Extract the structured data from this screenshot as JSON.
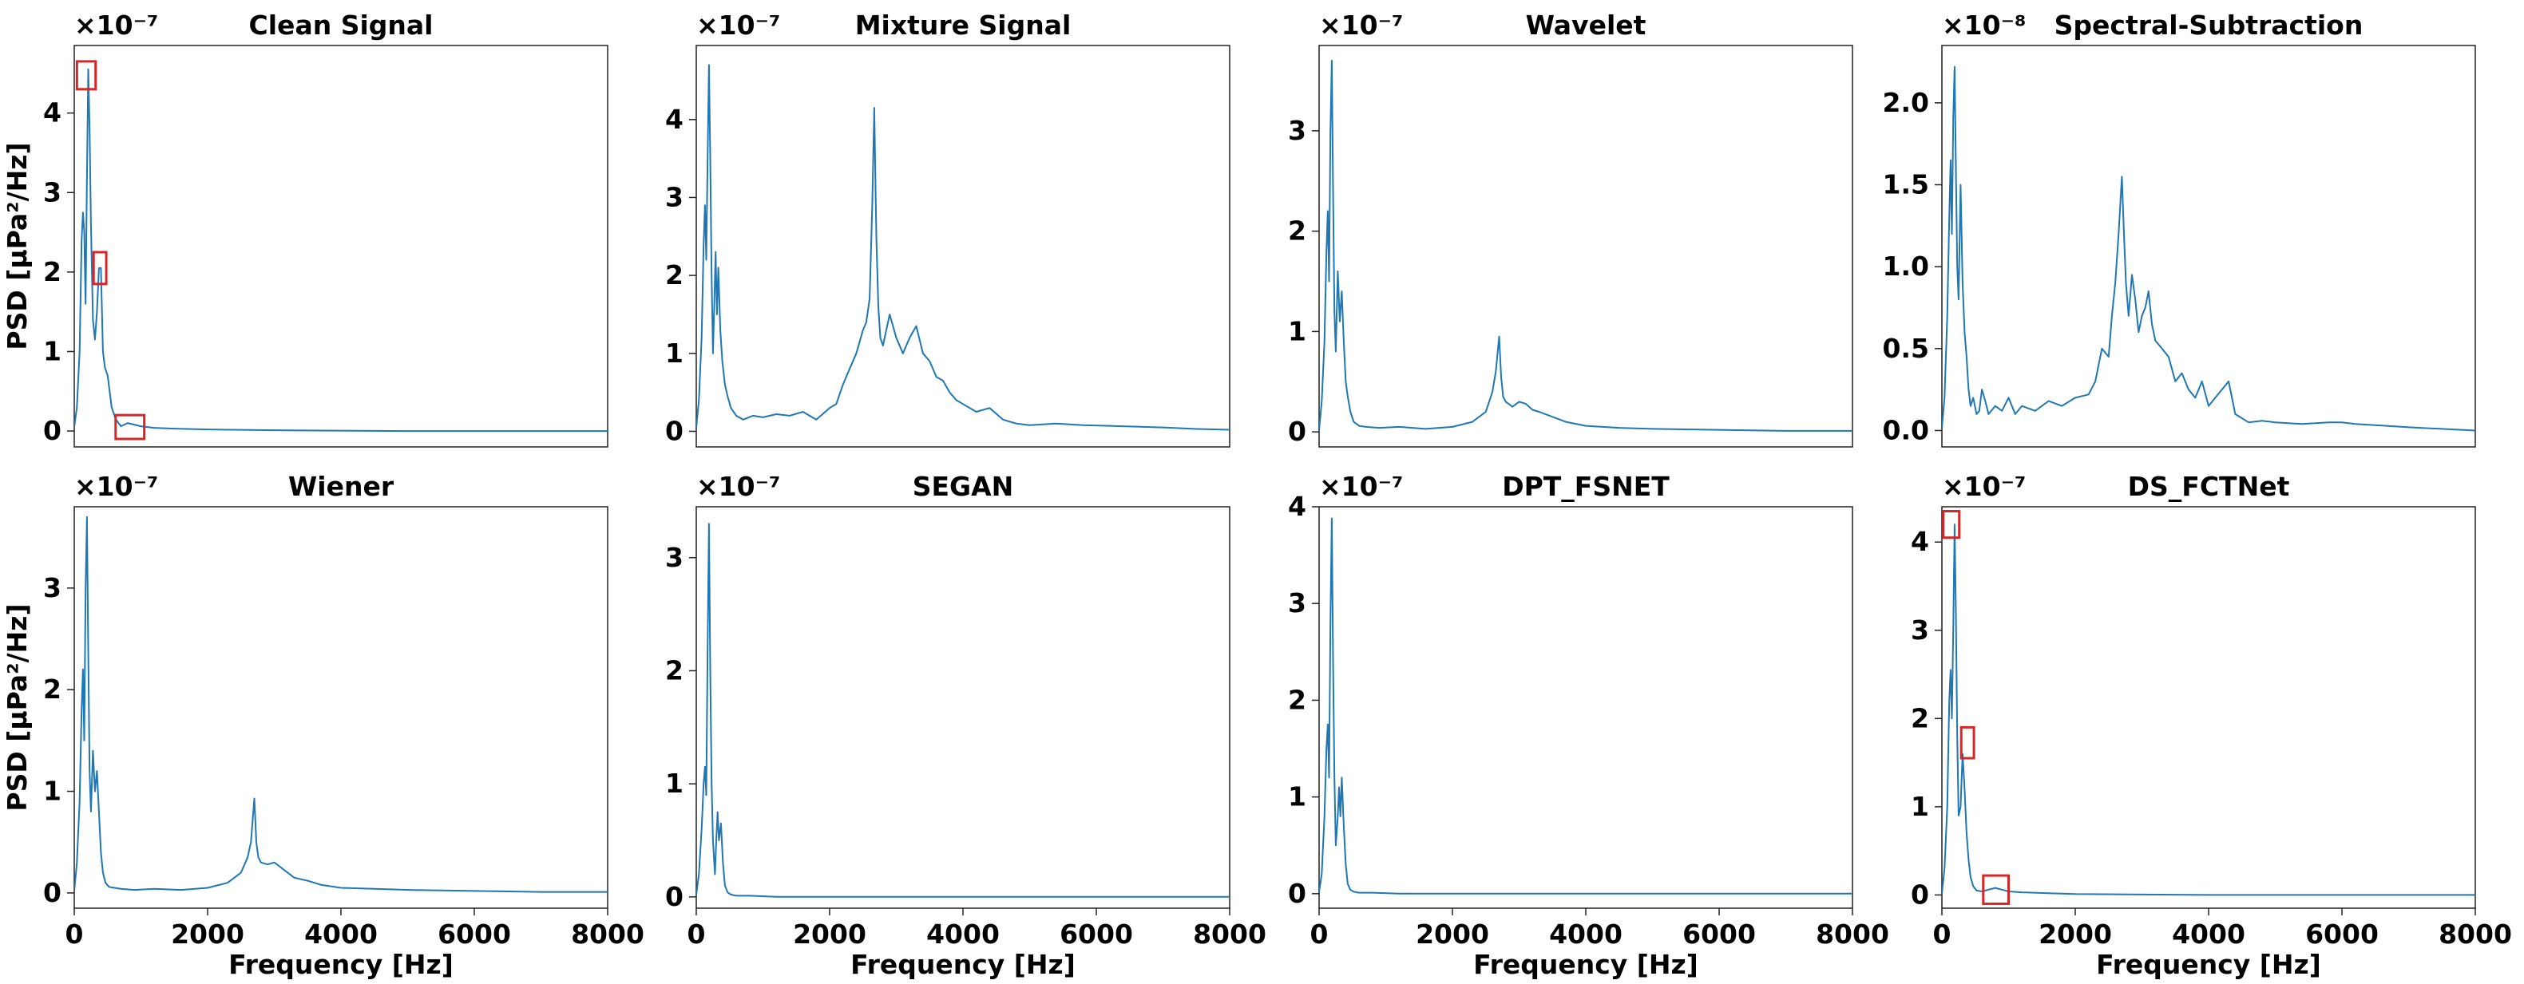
{
  "chart_data": [
    {
      "type": "line",
      "title": "Clean Signal",
      "multiplier": "×10⁻⁷",
      "ylabel": "PSD [μPa²/Hz]",
      "xlabel": "",
      "xlim": [
        0,
        8000
      ],
      "ylim": [
        -0.2,
        4.85
      ],
      "xticks": [],
      "yticks": [
        0,
        1,
        2,
        3,
        4
      ],
      "x": [
        0,
        40,
        80,
        110,
        130,
        150,
        170,
        190,
        210,
        230,
        250,
        280,
        310,
        340,
        370,
        400,
        430,
        460,
        500,
        560,
        620,
        700,
        800,
        900,
        1000,
        1200,
        1500,
        2000,
        3000,
        5000,
        8000
      ],
      "y": [
        0.05,
        0.3,
        1.0,
        2.4,
        2.75,
        2.5,
        1.6,
        3.2,
        4.55,
        3.8,
        2.6,
        1.4,
        1.15,
        1.5,
        2.05,
        2.05,
        1.0,
        0.8,
        0.7,
        0.3,
        0.15,
        0.06,
        0.1,
        0.08,
        0.06,
        0.04,
        0.03,
        0.02,
        0.01,
        0.0,
        0.0
      ],
      "highlights": [
        {
          "x": [
            40,
            320
          ],
          "y": [
            4.3,
            4.65
          ]
        },
        {
          "x": [
            290,
            480
          ],
          "y": [
            1.85,
            2.25
          ]
        },
        {
          "x": [
            620,
            1050
          ],
          "y": [
            -0.1,
            0.2
          ]
        }
      ]
    },
    {
      "type": "line",
      "title": "Mixture Signal",
      "multiplier": "×10⁻⁷",
      "ylabel": "",
      "xlabel": "",
      "xlim": [
        0,
        8000
      ],
      "ylim": [
        -0.2,
        4.95
      ],
      "xticks": [],
      "yticks": [
        0,
        1,
        2,
        3,
        4
      ],
      "x": [
        0,
        40,
        80,
        110,
        130,
        150,
        170,
        190,
        210,
        230,
        250,
        270,
        290,
        310,
        330,
        360,
        390,
        430,
        470,
        520,
        600,
        700,
        850,
        1000,
        1200,
        1400,
        1600,
        1800,
        2000,
        2100,
        2200,
        2300,
        2400,
        2500,
        2550,
        2600,
        2640,
        2670,
        2700,
        2730,
        2760,
        2800,
        2900,
        3000,
        3100,
        3200,
        3300,
        3400,
        3500,
        3600,
        3700,
        3800,
        3900,
        4000,
        4200,
        4400,
        4600,
        4800,
        5000,
        5400,
        5800,
        6200,
        6600,
        7000,
        7500,
        8000
      ],
      "y": [
        0.05,
        0.4,
        1.2,
        2.4,
        2.9,
        2.2,
        3.5,
        4.7,
        3.5,
        2.0,
        1.0,
        1.6,
        2.3,
        1.5,
        2.1,
        1.3,
        0.9,
        0.6,
        0.45,
        0.3,
        0.2,
        0.15,
        0.2,
        0.18,
        0.22,
        0.2,
        0.25,
        0.15,
        0.3,
        0.35,
        0.6,
        0.8,
        1.0,
        1.3,
        1.4,
        1.7,
        2.9,
        4.15,
        2.5,
        1.6,
        1.2,
        1.1,
        1.5,
        1.2,
        1.0,
        1.2,
        1.35,
        1.0,
        0.9,
        0.7,
        0.65,
        0.5,
        0.4,
        0.35,
        0.25,
        0.3,
        0.15,
        0.1,
        0.08,
        0.1,
        0.08,
        0.07,
        0.06,
        0.05,
        0.03,
        0.02
      ]
    },
    {
      "type": "line",
      "title": "Wavelet",
      "multiplier": "×10⁻⁷",
      "ylabel": "",
      "xlabel": "",
      "xlim": [
        0,
        8000
      ],
      "ylim": [
        -0.15,
        3.85
      ],
      "xticks": [],
      "yticks": [
        0,
        1,
        2,
        3
      ],
      "x": [
        0,
        40,
        80,
        110,
        130,
        150,
        170,
        190,
        210,
        230,
        250,
        280,
        310,
        340,
        370,
        400,
        430,
        470,
        520,
        600,
        700,
        900,
        1200,
        1600,
        2000,
        2300,
        2500,
        2600,
        2650,
        2700,
        2730,
        2760,
        2800,
        2900,
        3000,
        3100,
        3200,
        3300,
        3500,
        3700,
        4000,
        4500,
        5000,
        6000,
        7000,
        8000
      ],
      "y": [
        0.02,
        0.3,
        0.9,
        1.8,
        2.2,
        1.5,
        3.0,
        3.7,
        2.4,
        1.2,
        0.8,
        1.6,
        1.1,
        1.4,
        0.9,
        0.5,
        0.35,
        0.2,
        0.1,
        0.06,
        0.05,
        0.04,
        0.05,
        0.03,
        0.05,
        0.1,
        0.2,
        0.4,
        0.6,
        0.95,
        0.55,
        0.35,
        0.3,
        0.25,
        0.3,
        0.28,
        0.22,
        0.2,
        0.15,
        0.1,
        0.06,
        0.04,
        0.03,
        0.02,
        0.01,
        0.01
      ]
    },
    {
      "type": "line",
      "title": "Spectral-Subtraction",
      "multiplier": "×10⁻⁸",
      "ylabel": "",
      "xlabel": "",
      "xlim": [
        0,
        8000
      ],
      "ylim": [
        -0.1,
        2.35
      ],
      "xticks": [],
      "yticks": [
        "0.0",
        "0.5",
        "1.0",
        "1.5",
        "2.0"
      ],
      "x": [
        0,
        40,
        80,
        110,
        130,
        150,
        170,
        190,
        210,
        230,
        250,
        280,
        310,
        340,
        370,
        400,
        430,
        470,
        520,
        560,
        600,
        650,
        700,
        800,
        900,
        1000,
        1100,
        1200,
        1400,
        1600,
        1800,
        2000,
        2200,
        2300,
        2400,
        2500,
        2550,
        2600,
        2650,
        2700,
        2730,
        2760,
        2800,
        2850,
        2900,
        2950,
        3000,
        3050,
        3100,
        3150,
        3200,
        3300,
        3400,
        3500,
        3600,
        3700,
        3800,
        3900,
        4000,
        4100,
        4200,
        4300,
        4400,
        4600,
        4800,
        5000,
        5400,
        5800,
        6000,
        6200,
        6600,
        7000,
        7500,
        8000
      ],
      "y": [
        0.02,
        0.2,
        0.7,
        1.3,
        1.65,
        1.2,
        1.9,
        2.22,
        1.6,
        1.0,
        0.8,
        1.5,
        0.9,
        0.6,
        0.45,
        0.25,
        0.15,
        0.2,
        0.1,
        0.12,
        0.25,
        0.18,
        0.1,
        0.15,
        0.12,
        0.2,
        0.1,
        0.15,
        0.12,
        0.18,
        0.15,
        0.2,
        0.22,
        0.3,
        0.5,
        0.45,
        0.7,
        0.9,
        1.2,
        1.55,
        1.2,
        0.9,
        0.7,
        0.95,
        0.8,
        0.6,
        0.7,
        0.75,
        0.85,
        0.65,
        0.55,
        0.5,
        0.45,
        0.3,
        0.35,
        0.25,
        0.2,
        0.3,
        0.15,
        0.2,
        0.25,
        0.3,
        0.1,
        0.05,
        0.06,
        0.05,
        0.04,
        0.05,
        0.05,
        0.04,
        0.03,
        0.02,
        0.01,
        0.0
      ]
    },
    {
      "type": "line",
      "title": "Wiener",
      "multiplier": "×10⁻⁷",
      "ylabel": "PSD [μPa²/Hz]",
      "xlabel": "Frequency [Hz]",
      "xlim": [
        0,
        8000
      ],
      "ylim": [
        -0.15,
        3.8
      ],
      "xticks": [
        0,
        2000,
        4000,
        6000,
        8000
      ],
      "yticks": [
        0,
        1,
        2,
        3
      ],
      "x": [
        0,
        40,
        80,
        110,
        130,
        150,
        170,
        190,
        210,
        230,
        250,
        280,
        310,
        340,
        370,
        400,
        430,
        470,
        520,
        600,
        700,
        900,
        1200,
        1600,
        2000,
        2300,
        2500,
        2600,
        2650,
        2700,
        2730,
        2760,
        2800,
        2900,
        3000,
        3100,
        3200,
        3300,
        3500,
        3700,
        4000,
        4500,
        5000,
        6000,
        7000,
        8000
      ],
      "y": [
        0.02,
        0.3,
        0.9,
        1.8,
        2.2,
        1.5,
        3.0,
        3.7,
        2.4,
        1.2,
        0.8,
        1.4,
        1.0,
        1.2,
        0.8,
        0.4,
        0.2,
        0.1,
        0.06,
        0.05,
        0.04,
        0.03,
        0.04,
        0.03,
        0.05,
        0.1,
        0.2,
        0.35,
        0.5,
        0.93,
        0.5,
        0.35,
        0.3,
        0.28,
        0.3,
        0.25,
        0.2,
        0.15,
        0.12,
        0.08,
        0.05,
        0.04,
        0.03,
        0.02,
        0.01,
        0.01
      ]
    },
    {
      "type": "line",
      "title": "SEGAN",
      "multiplier": "×10⁻⁷",
      "ylabel": "",
      "xlabel": "Frequency [Hz]",
      "xlim": [
        0,
        8000
      ],
      "ylim": [
        -0.1,
        3.45
      ],
      "xticks": [
        0,
        2000,
        4000,
        6000,
        8000
      ],
      "yticks": [
        0,
        1,
        2,
        3
      ],
      "x": [
        0,
        40,
        80,
        110,
        130,
        150,
        170,
        190,
        210,
        230,
        250,
        280,
        300,
        320,
        340,
        370,
        400,
        430,
        470,
        520,
        600,
        800,
        1200,
        2000,
        4000,
        8000
      ],
      "y": [
        0.02,
        0.2,
        0.6,
        1.0,
        1.15,
        0.9,
        2.2,
        3.3,
        2.0,
        1.0,
        0.5,
        0.2,
        0.5,
        0.75,
        0.5,
        0.65,
        0.3,
        0.1,
        0.04,
        0.02,
        0.01,
        0.01,
        0.0,
        0.0,
        0.0,
        0.0
      ]
    },
    {
      "type": "line",
      "title": "DPT_FSNET",
      "multiplier": "×10⁻⁷",
      "ylabel": "",
      "xlabel": "Frequency [Hz]",
      "xlim": [
        0,
        8000
      ],
      "ylim": [
        -0.15,
        4.0
      ],
      "xticks": [
        0,
        2000,
        4000,
        6000,
        8000
      ],
      "yticks": [
        0,
        1,
        2,
        3,
        4
      ],
      "x": [
        0,
        40,
        80,
        110,
        130,
        150,
        170,
        190,
        210,
        230,
        250,
        280,
        300,
        320,
        340,
        370,
        400,
        430,
        470,
        520,
        600,
        800,
        1200,
        2000,
        4000,
        8000
      ],
      "y": [
        0.02,
        0.2,
        0.8,
        1.5,
        1.75,
        1.2,
        2.8,
        3.88,
        2.4,
        1.2,
        0.5,
        0.8,
        1.1,
        0.8,
        1.2,
        0.7,
        0.3,
        0.1,
        0.04,
        0.02,
        0.01,
        0.01,
        0.0,
        0.0,
        0.0,
        0.0
      ]
    },
    {
      "type": "line",
      "title": "DS_FCTNet",
      "multiplier": "×10⁻⁷",
      "ylabel": "",
      "xlabel": "Frequency [Hz]",
      "xlim": [
        0,
        8000
      ],
      "ylim": [
        -0.15,
        4.4
      ],
      "xticks": [
        0,
        2000,
        4000,
        6000,
        8000
      ],
      "yticks": [
        0,
        1,
        2,
        3,
        4
      ],
      "x": [
        0,
        40,
        80,
        110,
        130,
        150,
        170,
        190,
        210,
        230,
        250,
        280,
        310,
        340,
        370,
        400,
        430,
        470,
        520,
        600,
        700,
        800,
        900,
        1000,
        1200,
        1600,
        2000,
        4000,
        8000
      ],
      "y": [
        0.02,
        0.3,
        1.0,
        2.2,
        2.55,
        2.0,
        3.0,
        4.2,
        3.2,
        1.8,
        0.9,
        1.0,
        1.6,
        1.2,
        0.7,
        0.4,
        0.2,
        0.1,
        0.05,
        0.04,
        0.06,
        0.08,
        0.06,
        0.04,
        0.03,
        0.02,
        0.01,
        0.0,
        0.0
      ],
      "highlights": [
        {
          "x": [
            20,
            260
          ],
          "y": [
            4.05,
            4.35
          ]
        },
        {
          "x": [
            290,
            480
          ],
          "y": [
            1.55,
            1.9
          ]
        },
        {
          "x": [
            620,
            1000
          ],
          "y": [
            -0.1,
            0.22
          ]
        }
      ]
    }
  ]
}
